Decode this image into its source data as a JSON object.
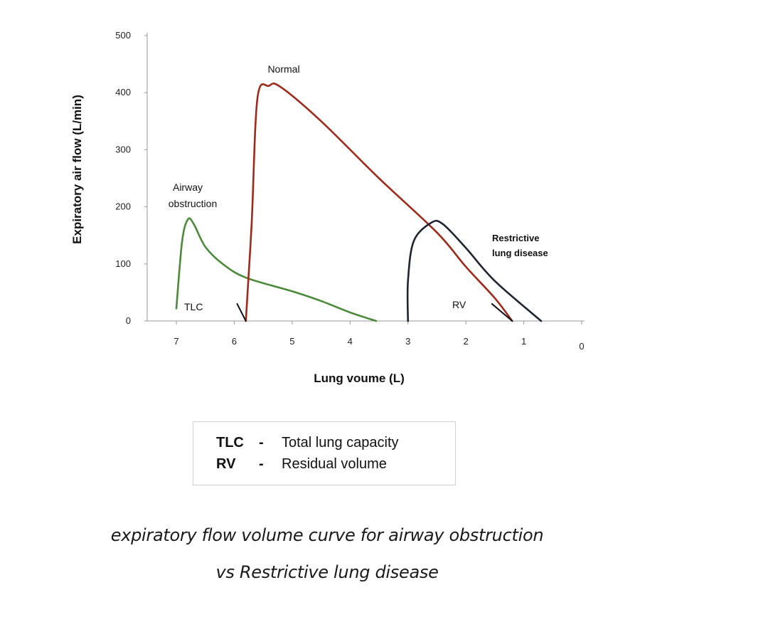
{
  "chart_data": {
    "type": "line",
    "ylabel": "Expiratory air flow (L/min)",
    "xlabel": "Lung voume (L)",
    "xlim": [
      7,
      0
    ],
    "ylim": [
      0,
      500
    ],
    "x_ticks": [
      7,
      6,
      5,
      4,
      3,
      2,
      1,
      0
    ],
    "y_ticks": [
      0,
      100,
      200,
      300,
      400,
      500
    ],
    "x_reversed": true,
    "grid": false,
    "series": [
      {
        "name": "Airway obstruction",
        "color": "#4b8a3a",
        "points": [
          [
            7.0,
            22
          ],
          [
            6.9,
            140
          ],
          [
            6.8,
            178
          ],
          [
            6.7,
            170
          ],
          [
            6.5,
            130
          ],
          [
            6.2,
            100
          ],
          [
            5.8,
            76
          ],
          [
            5.0,
            52
          ],
          [
            4.5,
            35
          ],
          [
            4.0,
            15
          ],
          [
            3.55,
            0
          ]
        ]
      },
      {
        "name": "Normal",
        "color": "#9e2a1a",
        "points": [
          [
            5.8,
            0
          ],
          [
            5.7,
            170
          ],
          [
            5.6,
            390
          ],
          [
            5.4,
            412
          ],
          [
            5.2,
            410
          ],
          [
            4.5,
            350
          ],
          [
            3.5,
            250
          ],
          [
            2.5,
            155
          ],
          [
            2.0,
            95
          ],
          [
            1.5,
            40
          ],
          [
            1.2,
            0
          ]
        ]
      },
      {
        "name": "Restrictive lung disease",
        "color": "#1f2530",
        "points": [
          [
            3.0,
            0
          ],
          [
            3.0,
            70
          ],
          [
            2.9,
            140
          ],
          [
            2.6,
            172
          ],
          [
            2.4,
            170
          ],
          [
            2.0,
            128
          ],
          [
            1.5,
            70
          ],
          [
            0.7,
            0
          ]
        ]
      },
      {
        "name": "TLC",
        "color": "#111111",
        "points": [
          [
            5.95,
            30
          ],
          [
            5.8,
            0
          ]
        ]
      },
      {
        "name": "RV",
        "color": "#111111",
        "points": [
          [
            1.55,
            30
          ],
          [
            1.2,
            0
          ]
        ]
      }
    ],
    "annotations": {
      "airway_line1": "Airway",
      "airway_line2": "obstruction",
      "normal": "Normal",
      "restrictive_line1": "Restrictive",
      "restrictive_line2": "lung disease",
      "tlc": "TLC",
      "rv": "RV"
    }
  },
  "legend": {
    "rows": [
      {
        "abbr": "TLC",
        "dash": "-",
        "text": "Total lung capacity"
      },
      {
        "abbr": "RV",
        "dash": "-",
        "text": "Residual volume"
      }
    ]
  },
  "caption": {
    "line1": "expiratory flow volume curve for airway obstruction",
    "line2": "vs Restrictive lung disease"
  }
}
